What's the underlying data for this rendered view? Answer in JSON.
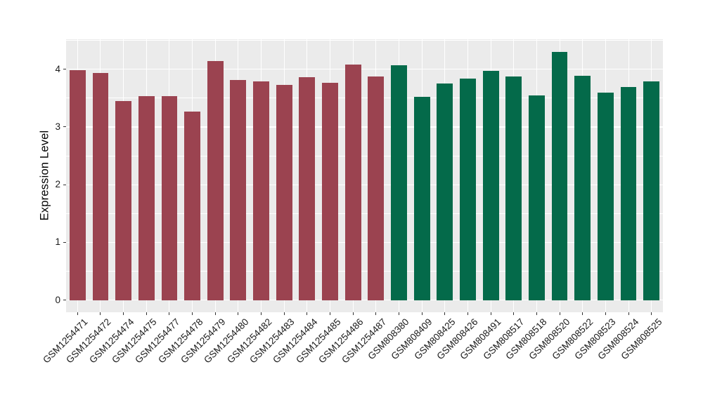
{
  "figure": {
    "background": "#FFFFFF",
    "panel_background": "#EBEBEB",
    "gridline_color": "#FFFFFF",
    "tick_mark_color": "#333333",
    "axis_text_color": "#1A1A1A"
  },
  "chart_data": {
    "type": "bar",
    "title": "",
    "xlabel": "",
    "ylabel": "Expression Level",
    "ylim": [
      -0.21,
      4.52
    ],
    "yticks": [
      0,
      1,
      2,
      3,
      4
    ],
    "yminor": [
      0.5,
      1.5,
      2.5,
      3.5,
      4.5
    ],
    "grid": "on",
    "legend_position": "none",
    "bar_width_fraction": 0.7,
    "categories": [
      "GSM1254471",
      "GSM1254472",
      "GSM1254474",
      "GSM1254475",
      "GSM1254477",
      "GSM1254478",
      "GSM1254479",
      "GSM1254480",
      "GSM1254482",
      "GSM1254483",
      "GSM1254484",
      "GSM1254485",
      "GSM1254486",
      "GSM1254487",
      "GSM808380",
      "GSM808409",
      "GSM808425",
      "GSM808426",
      "GSM808491",
      "GSM808517",
      "GSM808518",
      "GSM808520",
      "GSM808522",
      "GSM808523",
      "GSM808524",
      "GSM808525"
    ],
    "values": [
      3.99,
      3.93,
      3.45,
      3.54,
      3.54,
      3.27,
      4.14,
      3.82,
      3.79,
      3.73,
      3.86,
      3.76,
      4.08,
      3.87,
      4.07,
      3.52,
      3.75,
      3.84,
      3.97,
      3.88,
      3.55,
      4.3,
      3.89,
      3.6,
      3.69,
      3.79
    ],
    "colors": [
      "#9B4350",
      "#9B4350",
      "#9B4350",
      "#9B4350",
      "#9B4350",
      "#9B4350",
      "#9B4350",
      "#9B4350",
      "#9B4350",
      "#9B4350",
      "#9B4350",
      "#9B4350",
      "#9B4350",
      "#9B4350",
      "#046A4A",
      "#046A4A",
      "#046A4A",
      "#046A4A",
      "#046A4A",
      "#046A4A",
      "#046A4A",
      "#046A4A",
      "#046A4A",
      "#046A4A",
      "#046A4A",
      "#046A4A"
    ]
  }
}
